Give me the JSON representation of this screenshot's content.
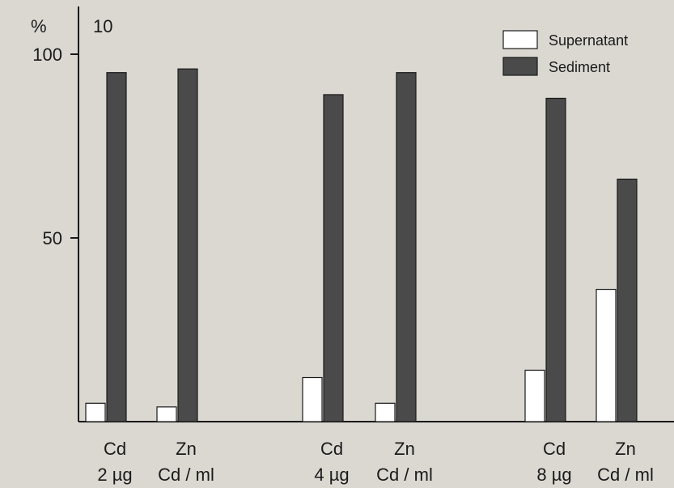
{
  "chart_data": {
    "type": "bar",
    "panel_label": "10",
    "unit_label": "%",
    "ylim": [
      0,
      100
    ],
    "yticks": [
      50,
      100
    ],
    "categories": [
      {
        "top": "Cd",
        "bottom": "2 µg"
      },
      {
        "top": "Zn",
        "bottom": "Cd / ml"
      },
      {
        "top": "Cd",
        "bottom": "4 µg"
      },
      {
        "top": "Zn",
        "bottom": "Cd / ml"
      },
      {
        "top": "Cd",
        "bottom": "8 µg"
      },
      {
        "top": "Zn",
        "bottom": "Cd / ml"
      }
    ],
    "series": [
      {
        "name": "Supernatant",
        "color": "#ffffff",
        "values": [
          5,
          4,
          12,
          5,
          14,
          36
        ]
      },
      {
        "name": "Sediment",
        "color": "#4a4a4a",
        "values": [
          95,
          96,
          89,
          95,
          88,
          66
        ]
      }
    ],
    "legend_position": "top-right",
    "grid": false
  }
}
